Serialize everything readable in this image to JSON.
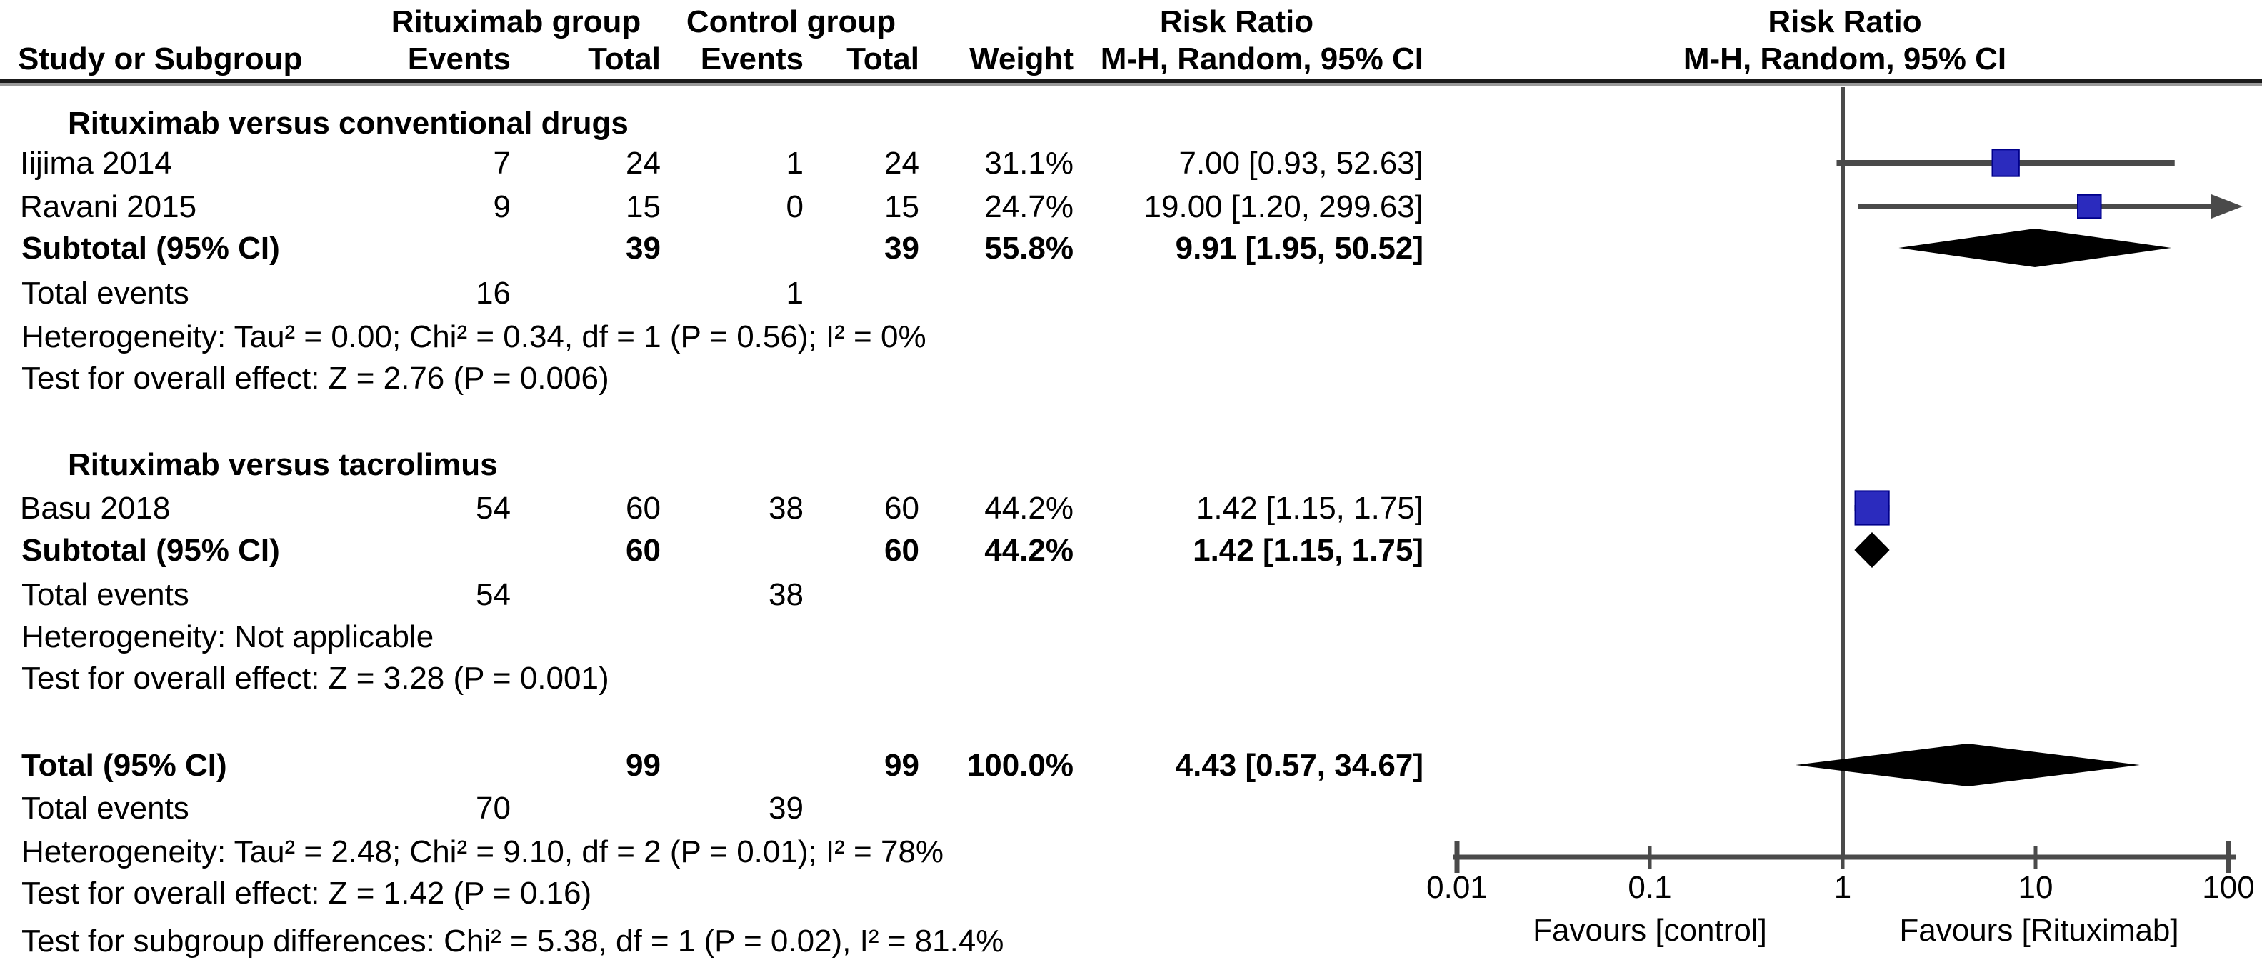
{
  "header": {
    "group1": "Rituximab group",
    "group2": "Control group",
    "col_study": "Study or Subgroup",
    "col_events": "Events",
    "col_total": "Total",
    "col_weight": "Weight",
    "rr_title": "Risk Ratio",
    "rr_method": "M-H, Random, 95% CI"
  },
  "sg1": {
    "title": "Rituximab versus conventional drugs",
    "studies": [
      {
        "name": "Iijima 2014",
        "e1": "7",
        "t1": "24",
        "e2": "1",
        "t2": "24",
        "weight": "31.1%",
        "ci": "7.00 [0.93, 52.63]"
      },
      {
        "name": "Ravani 2015",
        "e1": "9",
        "t1": "15",
        "e2": "0",
        "t2": "15",
        "weight": "24.7%",
        "ci": "19.00 [1.20, 299.63]"
      }
    ],
    "subtotal": {
      "label": "Subtotal (95% CI)",
      "t1": "39",
      "t2": "39",
      "weight": "55.8%",
      "ci": "9.91 [1.95, 50.52]"
    },
    "total_events": {
      "label": "Total events",
      "e1": "16",
      "e2": "1"
    },
    "heterogeneity": "Heterogeneity: Tau² = 0.00; Chi² = 0.34, df = 1 (P = 0.56); I² = 0%",
    "overall": "Test for overall effect: Z = 2.76 (P = 0.006)"
  },
  "sg2": {
    "title": "Rituximab versus tacrolimus",
    "studies": [
      {
        "name": "Basu 2018",
        "e1": "54",
        "t1": "60",
        "e2": "38",
        "t2": "60",
        "weight": "44.2%",
        "ci": "1.42 [1.15, 1.75]"
      }
    ],
    "subtotal": {
      "label": "Subtotal (95% CI)",
      "t1": "60",
      "t2": "60",
      "weight": "44.2%",
      "ci": "1.42 [1.15, 1.75]"
    },
    "total_events": {
      "label": "Total events",
      "e1": "54",
      "e2": "38"
    },
    "heterogeneity": "Heterogeneity: Not applicable",
    "overall": "Test for overall effect: Z = 3.28 (P = 0.001)"
  },
  "total": {
    "label": "Total (95% CI)",
    "t1": "99",
    "t2": "99",
    "weight": "100.0%",
    "ci": "4.43 [0.57, 34.67]",
    "total_events": {
      "label": "Total events",
      "e1": "70",
      "e2": "39"
    },
    "heterogeneity": "Heterogeneity: Tau² = 2.48; Chi² = 9.10, df = 2 (P = 0.01); I² = 78%",
    "overall": "Test for overall effect: Z = 1.42 (P = 0.16)",
    "subgroup_diff": "Test for subgroup differences: Chi² = 5.38, df = 1 (P = 0.02), I² = 81.4%"
  },
  "chart_data": {
    "type": "forest",
    "x_scale": "log10",
    "x_ticks": [
      "0.01",
      "0.1",
      "1",
      "10",
      "100"
    ],
    "x_range": [
      0.01,
      100
    ],
    "null_line": 1,
    "measure": "Risk Ratio, M-H, Random, 95% CI",
    "favours_left": "Favours [control]",
    "favours_right": "Favours [Rituximab]",
    "rows": [
      {
        "label": "Iijima 2014",
        "kind": "square",
        "est": 7.0,
        "lo": 0.93,
        "hi": 52.63,
        "weight_pct": 31.1
      },
      {
        "label": "Ravani 2015",
        "kind": "square",
        "est": 19.0,
        "lo": 1.2,
        "hi": 299.63,
        "weight_pct": 24.7
      },
      {
        "label": "Subtotal (95% CI)",
        "kind": "diamond",
        "est": 9.91,
        "lo": 1.95,
        "hi": 50.52
      },
      {
        "label": "Basu 2018",
        "kind": "square",
        "est": 1.42,
        "lo": 1.15,
        "hi": 1.75,
        "weight_pct": 44.2
      },
      {
        "label": "Subtotal (95% CI)",
        "kind": "diamond",
        "est": 1.42,
        "lo": 1.15,
        "hi": 1.75
      },
      {
        "label": "Total (95% CI)",
        "kind": "diamond",
        "est": 4.43,
        "lo": 0.57,
        "hi": 34.67
      }
    ],
    "colors": {
      "square": "#2b2bbe",
      "square_border": "#00008b",
      "ci_line": "#4a4a4a",
      "diamond": "#000000",
      "axis": "#4a4a4a"
    }
  }
}
